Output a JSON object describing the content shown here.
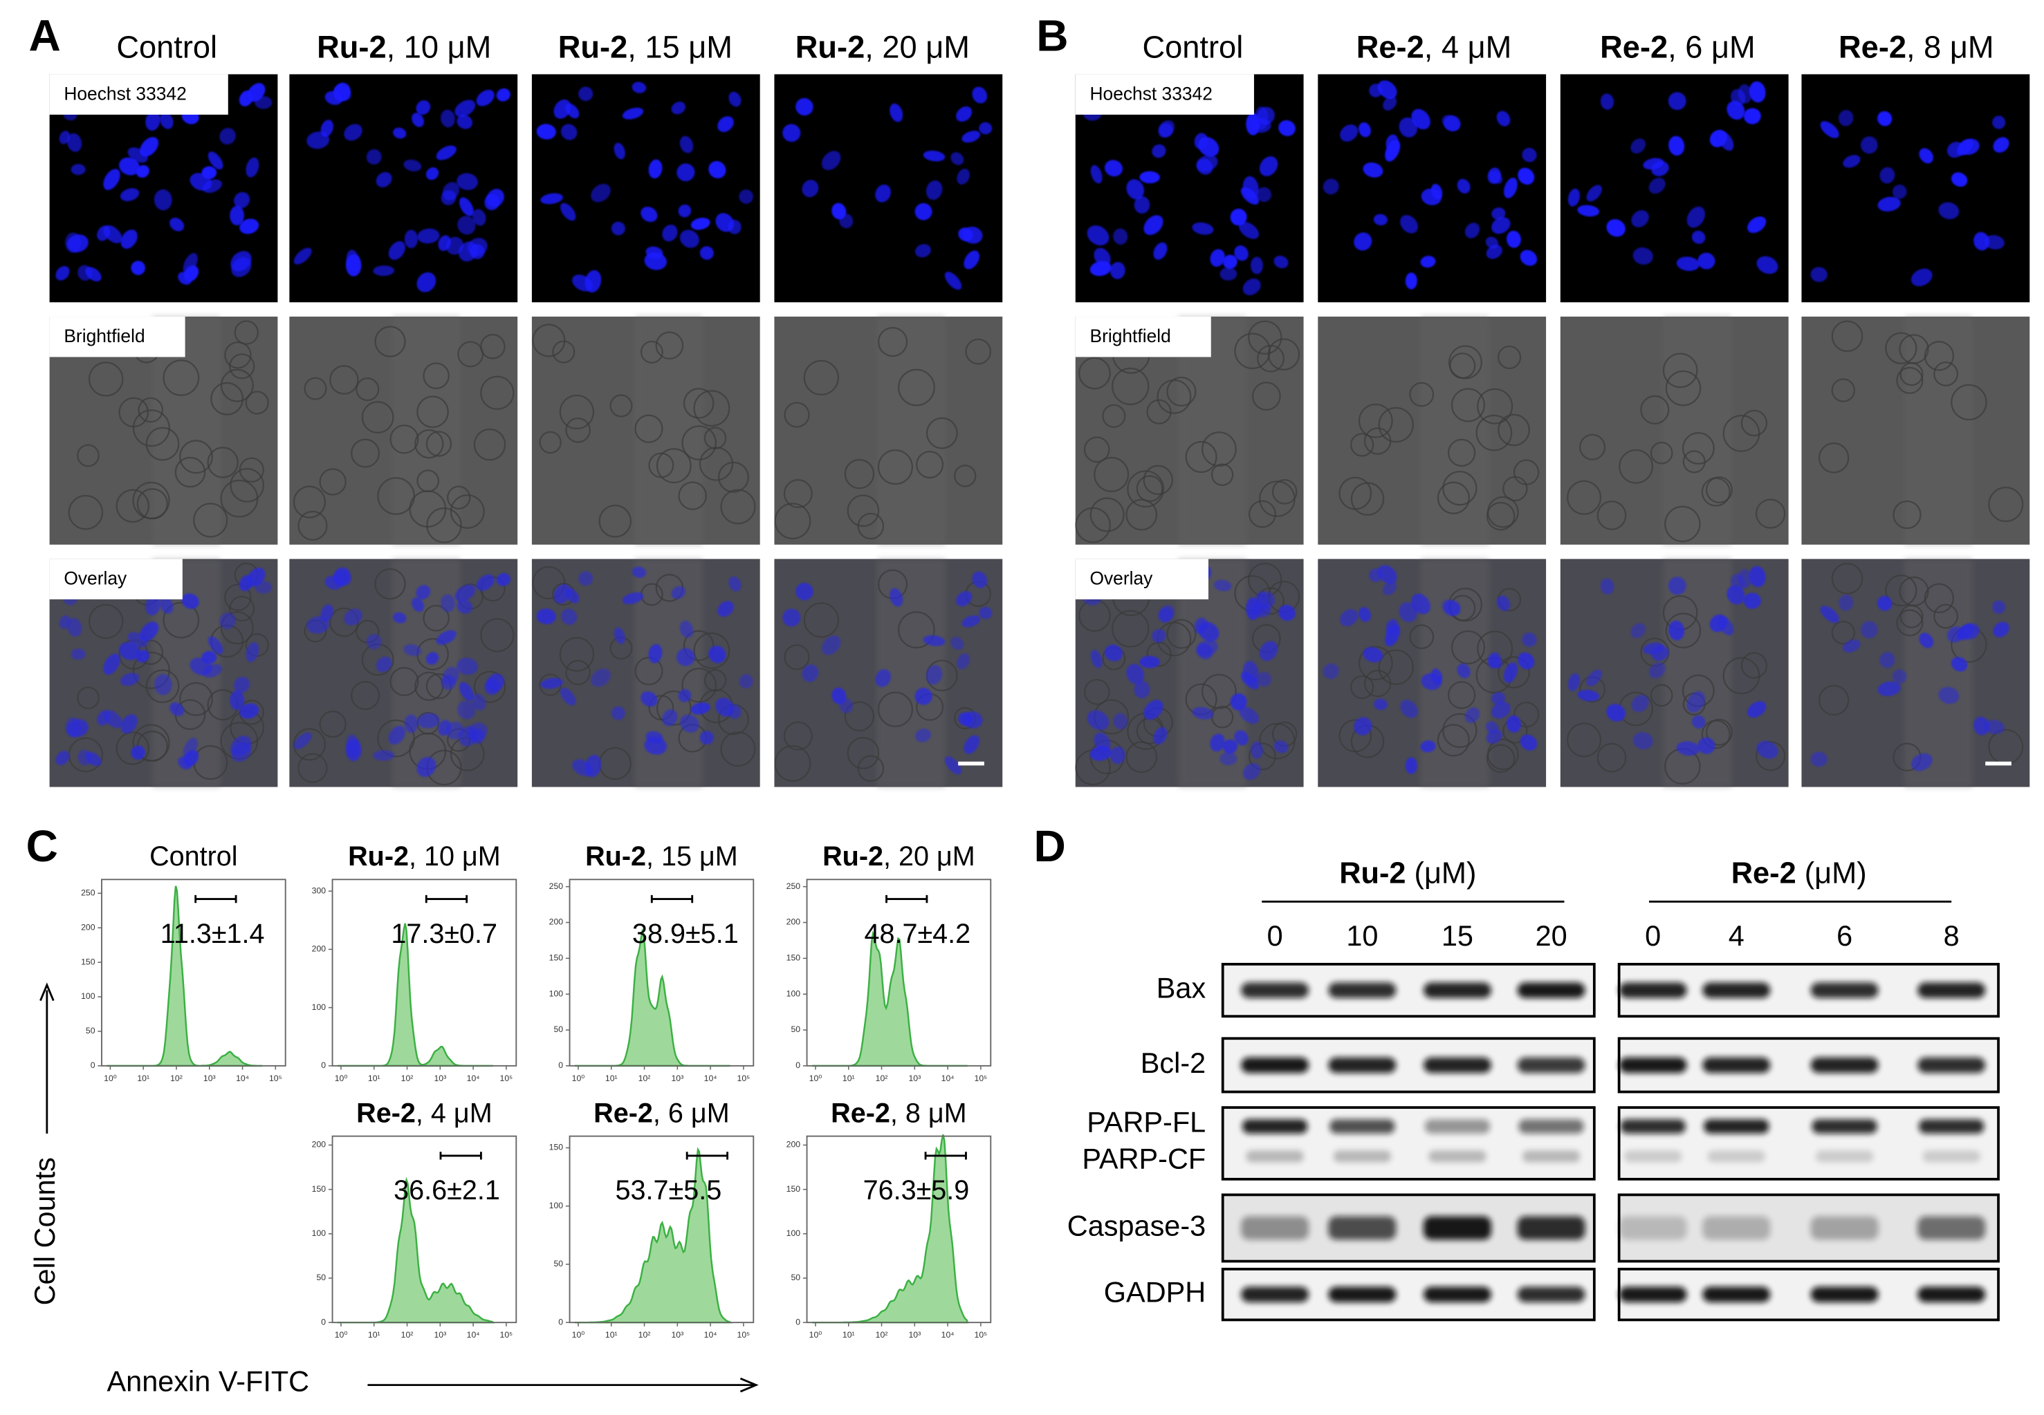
{
  "panel_a": {
    "label": "A",
    "columns": [
      {
        "text": "Control"
      },
      {
        "bold": "Ru-2",
        "text": ", 10 μM"
      },
      {
        "bold": "Ru-2",
        "text": ", 15 μM"
      },
      {
        "bold": "Ru-2",
        "text": ", 20 μM"
      }
    ],
    "rows": [
      "Hoechst 33342",
      "Brightfield",
      "Overlay"
    ]
  },
  "panel_b": {
    "label": "B",
    "columns": [
      {
        "text": "Control"
      },
      {
        "bold": "Re-2",
        "text": ", 4 μM"
      },
      {
        "bold": "Re-2",
        "text": ", 6 μM"
      },
      {
        "bold": "Re-2",
        "text": ", 8 μM"
      }
    ],
    "rows": [
      "Hoechst 33342",
      "Brightfield",
      "Overlay"
    ]
  },
  "panel_c": {
    "label": "C",
    "y_label": "Cell Counts",
    "x_label": "Annexin V-FITC",
    "xlog": true,
    "xlim": [
      0.55,
      200000
    ],
    "xticks": [
      {
        "value": 1,
        "label": "10⁰"
      },
      {
        "value": 10,
        "label": "10¹"
      },
      {
        "value": 100,
        "label": "10²"
      },
      {
        "value": 1000,
        "label": "10³"
      },
      {
        "value": 10000,
        "label": "10⁴"
      },
      {
        "value": 100000,
        "label": "10⁵"
      }
    ],
    "plots": [
      {
        "title": "Control",
        "annotation": "11.3±1.4",
        "ylim": [
          0,
          270
        ],
        "yticks": [
          0,
          50,
          100,
          150,
          200,
          250
        ]
      },
      {
        "title_bold": "Ru-2",
        "title": ", 10 μM",
        "annotation": "17.3±0.7",
        "ylim": [
          0,
          320
        ],
        "yticks": [
          0,
          100,
          200,
          300
        ]
      },
      {
        "title_bold": "Ru-2",
        "title": ", 15 μM",
        "annotation": "38.9±5.1",
        "ylim": [
          0,
          260
        ],
        "yticks": [
          0,
          50,
          100,
          150,
          200,
          250
        ]
      },
      {
        "title_bold": "Ru-2",
        "title": ", 20 μM",
        "annotation": "48.7±4.2",
        "ylim": [
          0,
          260
        ],
        "yticks": [
          0,
          50,
          100,
          150,
          200,
          250
        ]
      },
      {
        "title_bold": "Re-2",
        "title": ", 4 μM",
        "annotation": "36.6±2.1",
        "ylim": [
          0,
          210
        ],
        "yticks": [
          0,
          50,
          100,
          150,
          200
        ]
      },
      {
        "title_bold": "Re-2",
        "title": ", 6 μM",
        "annotation": "53.7±5.5",
        "ylim": [
          0,
          160
        ],
        "yticks": [
          0,
          50,
          100,
          150
        ]
      },
      {
        "title_bold": "Re-2",
        "title": ", 8 μM",
        "annotation": "76.3±5.9",
        "ylim": [
          0,
          210
        ],
        "yticks": [
          0,
          50,
          100,
          150,
          200
        ]
      }
    ]
  },
  "panel_d": {
    "label": "D",
    "groups": [
      {
        "bold": "Ru-2",
        "text": " (μM)",
        "lanes": [
          "0",
          "10",
          "15",
          "20"
        ]
      },
      {
        "bold": "Re-2",
        "text": " (μM)",
        "lanes": [
          "0",
          "4",
          "6",
          "8"
        ]
      }
    ],
    "rows": [
      [
        "Bax"
      ],
      [
        "Bcl-2"
      ],
      [
        "PARP-FL",
        "PARP-CF"
      ],
      [
        "Caspase-3"
      ],
      [
        "GADPH"
      ]
    ]
  }
}
